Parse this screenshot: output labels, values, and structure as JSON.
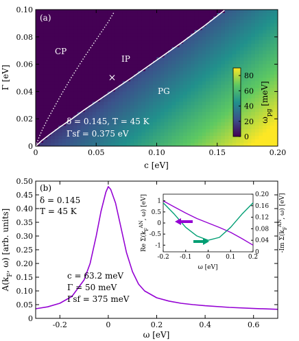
{
  "colors": {
    "pg_curve": "#ffffff",
    "spectral": "#9400d3",
    "self_energy_re": "#9400d3",
    "self_energy_im": "#009e73",
    "cmap": [
      "#440154",
      "#3b528b",
      "#21918c",
      "#5ec962",
      "#fde725"
    ]
  },
  "chart_data": [
    {
      "type": "heatmap",
      "panel_label": "(a)",
      "xlabel": "c [eV]",
      "ylabel": "Γ [eV]",
      "xlim": [
        0,
        0.2
      ],
      "ylim": [
        0,
        0.1
      ],
      "xticks": [
        "0",
        "0.05",
        "0.10",
        "0.15",
        "0.20"
      ],
      "yticks": [
        "0",
        "0.02",
        "0.04",
        "0.06",
        "0.08",
        "0.10"
      ],
      "colorbar": {
        "label": "ω",
        "label_sub": "pg",
        "label_unit": " [meV]",
        "range": [
          0,
          90
        ],
        "ticks": [
          "0",
          "20",
          "40",
          "60",
          "80"
        ],
        "placement": "inside-right"
      },
      "regions": [
        {
          "label": "CP"
        },
        {
          "label": "IP"
        },
        {
          "label": "PG"
        }
      ],
      "boundaries": [
        {
          "name": "solid",
          "style": "solid",
          "x": [
            0,
            0.005,
            0.01,
            0.02,
            0.03,
            0.04,
            0.06,
            0.08,
            0.1,
            0.12,
            0.14,
            0.156
          ],
          "y": [
            0,
            0.004,
            0.0075,
            0.014,
            0.02,
            0.0265,
            0.0385,
            0.0505,
            0.063,
            0.0755,
            0.0885,
            0.0995
          ]
        },
        {
          "name": "dotted",
          "style": "dotted",
          "x": [
            0,
            0.003,
            0.006,
            0.01,
            0.015,
            0.02,
            0.03,
            0.04,
            0.05,
            0.06,
            0.065
          ],
          "y": [
            0,
            0.007,
            0.013,
            0.02,
            0.028,
            0.036,
            0.051,
            0.065,
            0.078,
            0.091,
            0.0985
          ]
        }
      ],
      "marker": {
        "symbol": "×",
        "x": 0.0632,
        "y": 0.05
      },
      "annotations": [
        "δ = 0.145, T = 45 K",
        "Γsf = 0.375 eV"
      ]
    },
    {
      "type": "line",
      "panel_label": "(b)",
      "xlabel": "ω [eV]",
      "ylabel": "A(kF, ω) [arb. units]",
      "xlim": [
        -0.3,
        0.7
      ],
      "ylim": [
        0,
        0.5
      ],
      "xticks": [
        "-0.2",
        "0",
        "0.2",
        "0.4",
        "0.6"
      ],
      "yticks": [
        "0",
        "0.05",
        "0.10",
        "0.15",
        "0.20",
        "0.25",
        "0.30",
        "0.35",
        "0.40",
        "0.45",
        "0.50"
      ],
      "x": [
        -0.3,
        -0.25,
        -0.2,
        -0.15,
        -0.1,
        -0.075,
        -0.05,
        -0.03,
        -0.01,
        0,
        0.01,
        0.03,
        0.05,
        0.075,
        0.1,
        0.125,
        0.15,
        0.2,
        0.25,
        0.3,
        0.35,
        0.4,
        0.5,
        0.6,
        0.7
      ],
      "series": [
        {
          "values": [
            0.035,
            0.042,
            0.055,
            0.08,
            0.14,
            0.2,
            0.3,
            0.39,
            0.46,
            0.48,
            0.47,
            0.42,
            0.34,
            0.24,
            0.17,
            0.125,
            0.1,
            0.075,
            0.063,
            0.055,
            0.05,
            0.046,
            0.04,
            0.036,
            0.033
          ]
        }
      ],
      "annotations": [
        "δ = 0.145",
        "T = 45 K",
        "c = 63.2 meV",
        "Γ = 50 meV",
        "Γsf = 375 meV"
      ],
      "inset": {
        "xlabel": "ω [eV]",
        "ylabel_left": "Re Σ(k_F^AN, ω) [eV]",
        "ylabel_right": "-Im Σ(k_F^AN, ω) [eV]",
        "xlim": [
          -0.2,
          0.2
        ],
        "ylim_left": [
          -1.3,
          1.3
        ],
        "ylim_right": [
          0,
          0.2
        ],
        "xticks": [
          "-0.2",
          "-0.1",
          "0",
          "0.1",
          "0.2"
        ],
        "yticks_left": [
          "-1",
          "-0.5",
          "0",
          "0.5",
          "1"
        ],
        "yticks_right": [
          "0",
          "0.04",
          "0.08",
          "0.12",
          "0.16",
          "0.20"
        ],
        "x": [
          -0.2,
          -0.15,
          -0.1,
          -0.05,
          0,
          0.05,
          0.1,
          0.15,
          0.2
        ],
        "series": [
          {
            "axis": "left",
            "values": [
              1.0,
              0.72,
              0.45,
              0.2,
              0.0,
              -0.2,
              -0.42,
              -0.7,
              -1.0
            ]
          },
          {
            "axis": "right",
            "values": [
              0.17,
              0.13,
              0.085,
              0.055,
              0.04,
              0.05,
              0.085,
              0.13,
              0.17
            ]
          }
        ]
      }
    }
  ]
}
